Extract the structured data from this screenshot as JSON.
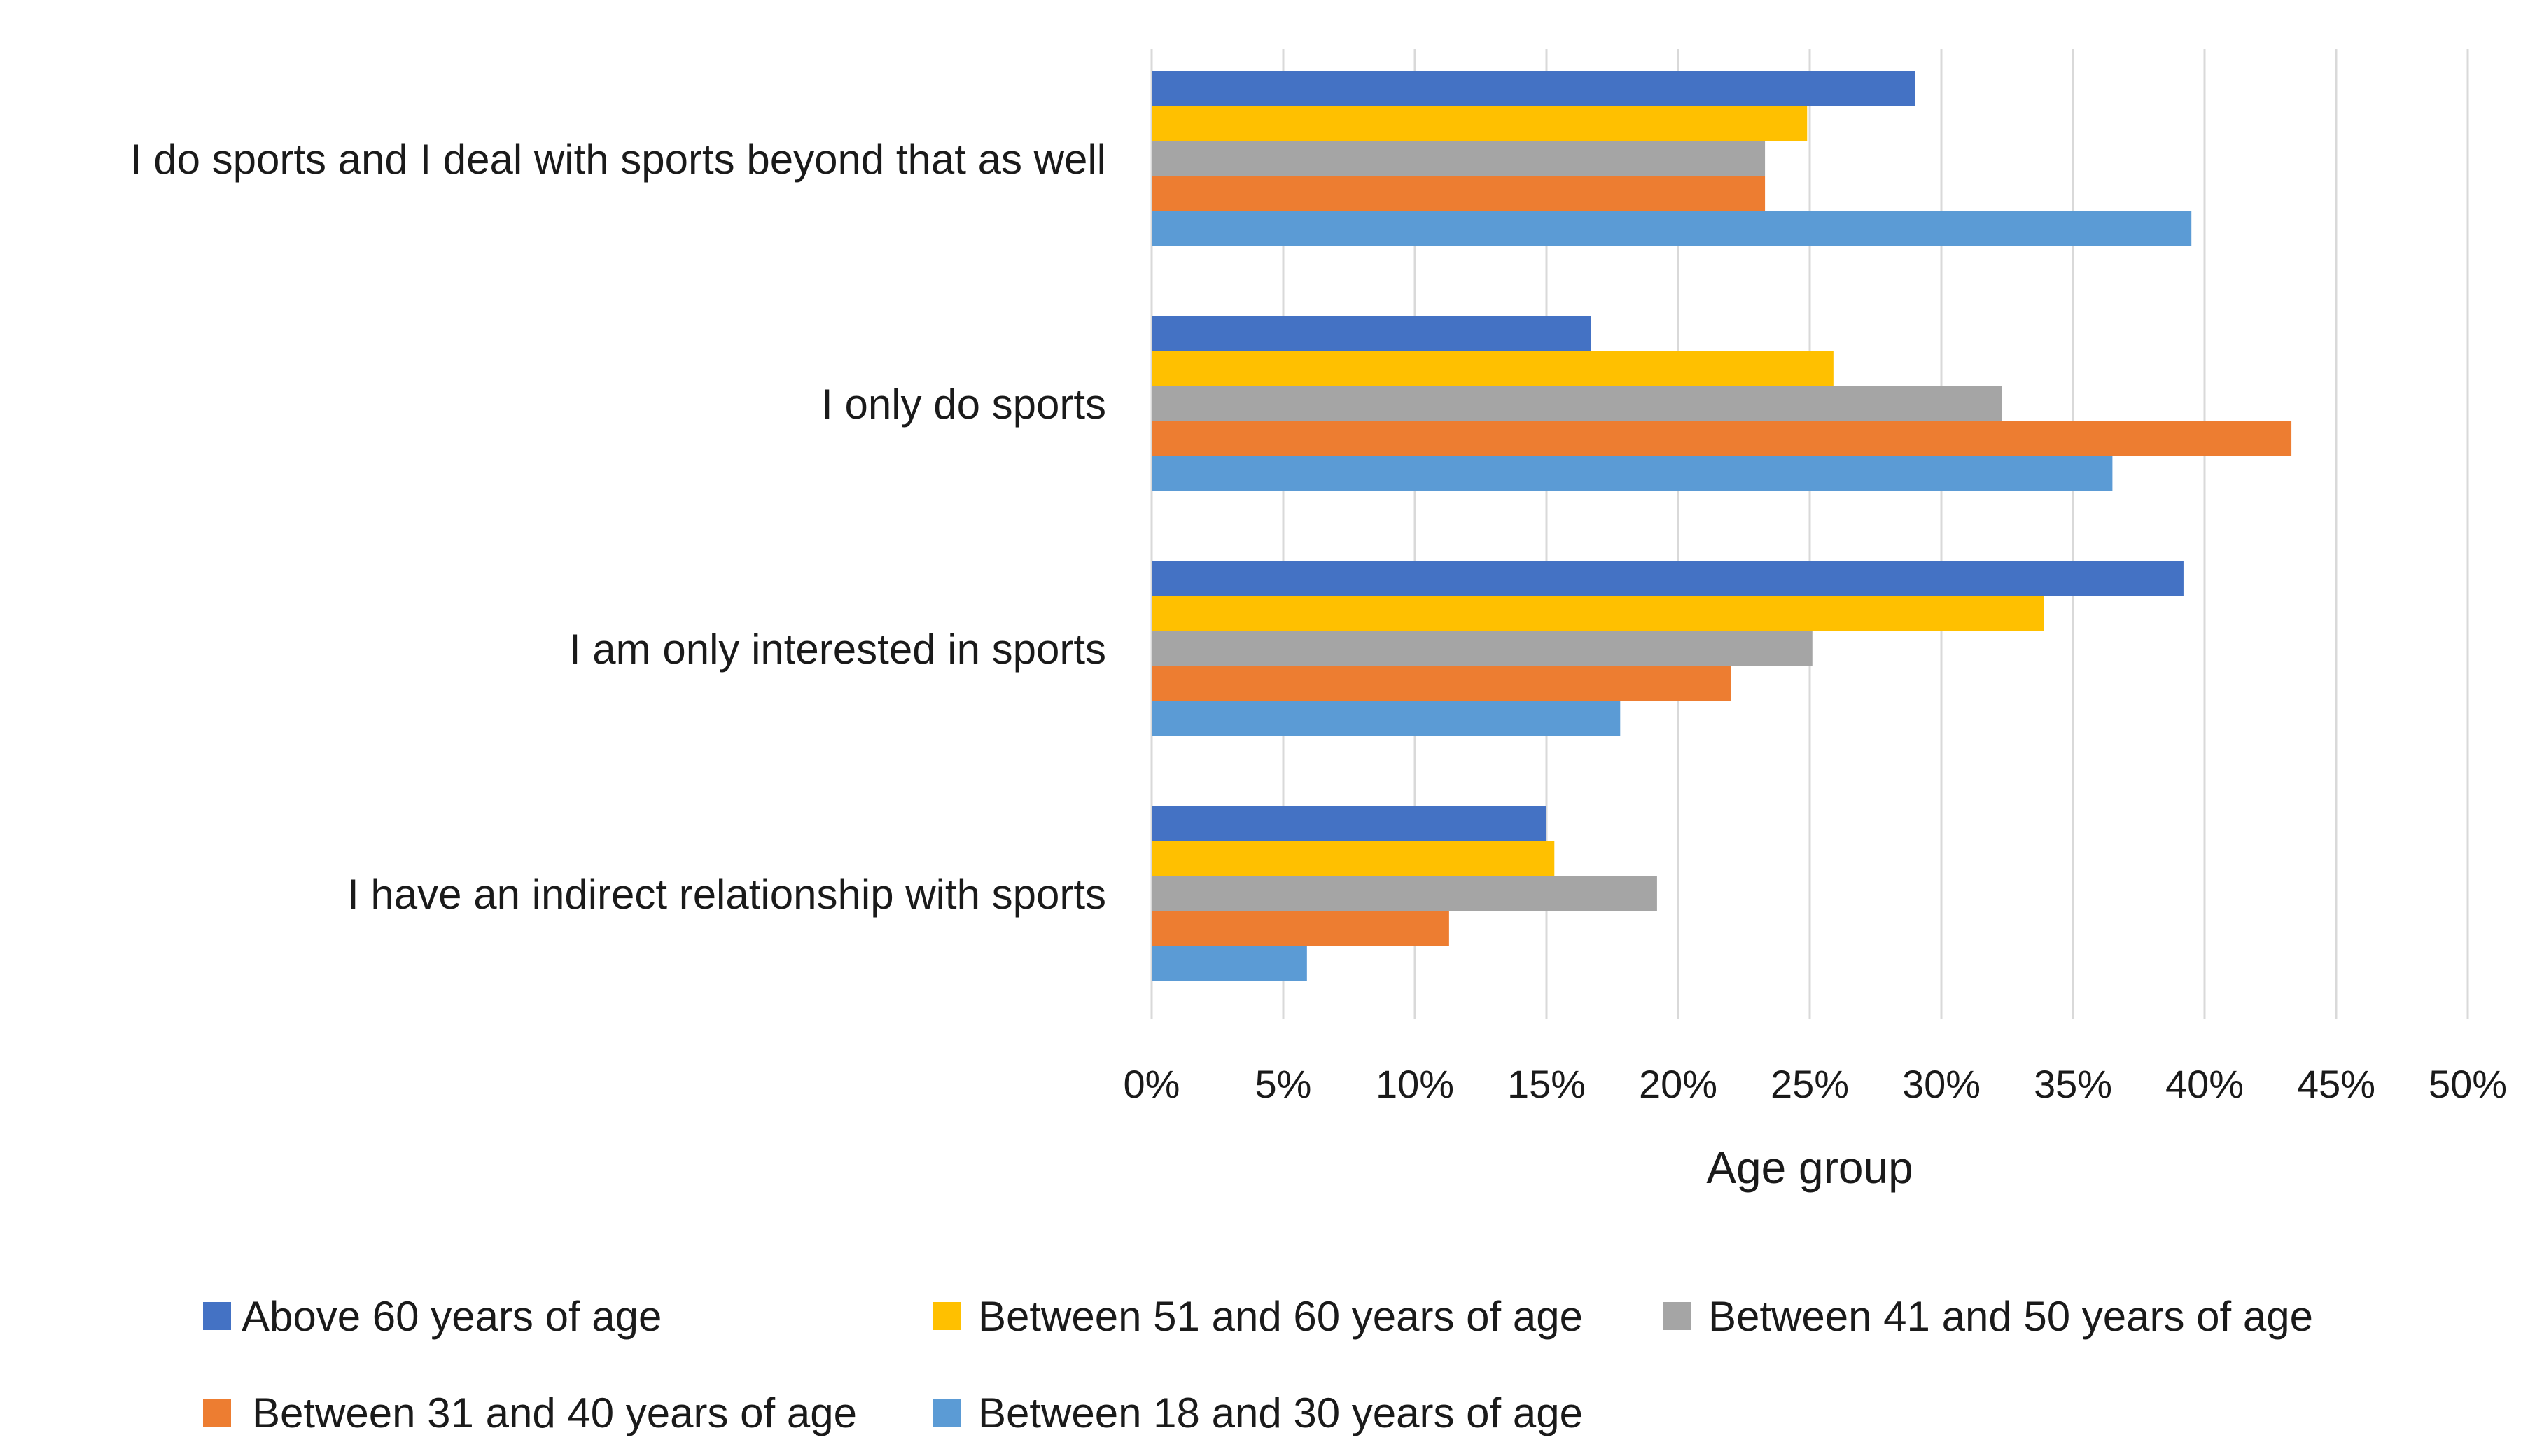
{
  "chart_data": {
    "type": "bar",
    "orientation": "horizontal",
    "categories": [
      "I do sports and I deal with sports beyond that as well",
      "I only do sports",
      "I am only interested in sports",
      "I have an indirect relationship with sports"
    ],
    "series": [
      {
        "name": "Above 60 years of age",
        "color": "#4472C4",
        "values": [
          29,
          16.7,
          39.2,
          15
        ]
      },
      {
        "name": "Between 51 and 60 years of age",
        "color": "#FFC000",
        "values": [
          24.9,
          25.9,
          33.9,
          15.3
        ]
      },
      {
        "name": "Between 41 and 50 years of age",
        "color": "#A5A5A5",
        "values": [
          23.3,
          32.3,
          25.1,
          19.2
        ]
      },
      {
        "name": "Between 31 and 40 years of age",
        "color": "#ED7D31",
        "values": [
          23.3,
          43.3,
          22,
          11.3
        ]
      },
      {
        "name": "Between 18 and 30 years of age",
        "color": "#5B9BD5",
        "values": [
          39.5,
          36.5,
          17.8,
          5.9
        ]
      }
    ],
    "xlabel": "Age group",
    "ylabel": "",
    "xlim": [
      0,
      50
    ],
    "ticks": [
      "0%",
      "5%",
      "10%",
      "15%",
      "20%",
      "25%",
      "30%",
      "35%",
      "40%",
      "45%",
      "50%"
    ],
    "grid": true,
    "legend_position": "bottom"
  }
}
